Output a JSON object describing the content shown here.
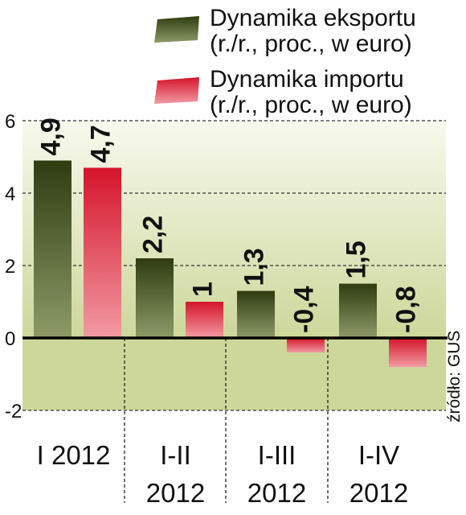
{
  "chart_data": {
    "type": "bar",
    "categories": [
      [
        "I 2012"
      ],
      [
        "I-II",
        "2012"
      ],
      [
        "I-III",
        "2012"
      ],
      [
        "I-IV",
        "2012"
      ]
    ],
    "series": [
      {
        "name": "Dynamika eksportu",
        "name_line2": "(r./r., proc., w euro)",
        "values": [
          4.9,
          2.2,
          1.3,
          1.5
        ],
        "labels": [
          "4,9",
          "2,2",
          "1,3",
          "1,5"
        ],
        "color_top": "#2f3c10",
        "color_bottom": "#8d9a68"
      },
      {
        "name": "Dynamika importu",
        "name_line2": "(r./r., proc., w euro)",
        "values": [
          4.7,
          1,
          -0.4,
          -0.8
        ],
        "labels": [
          "4,7",
          "1",
          "-0,4",
          "-0,8"
        ],
        "color_top": "#d5142a",
        "color_bottom": "#f29aa3"
      }
    ],
    "yticks": [
      6,
      4,
      2,
      0,
      -2
    ],
    "ylim": [
      -2,
      6
    ],
    "grid": true,
    "legend_position": "top-right",
    "source": "źródło: GUS",
    "bg_gradient": [
      "#f8f9ee",
      "#cdd79a"
    ]
  }
}
